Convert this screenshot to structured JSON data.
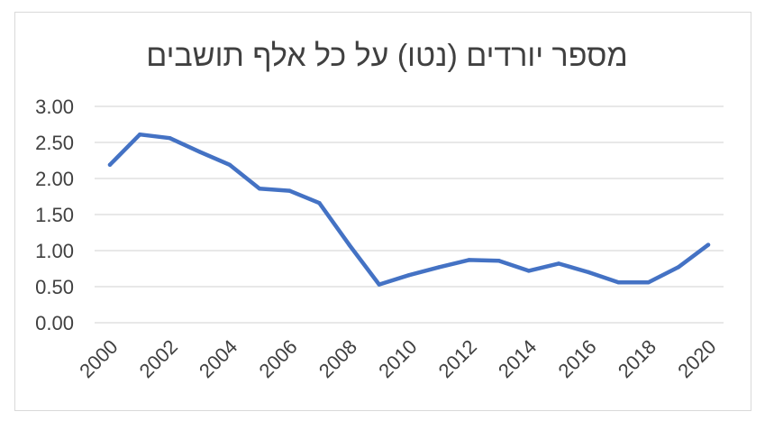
{
  "chart_data": {
    "type": "line",
    "title": "מספר יורדים (נטו) על כל אלף תושבים",
    "xlabel": "",
    "ylabel": "",
    "x": [
      2000,
      2001,
      2002,
      2003,
      2004,
      2005,
      2006,
      2007,
      2008,
      2009,
      2010,
      2011,
      2012,
      2013,
      2014,
      2015,
      2016,
      2017,
      2018,
      2019,
      2020
    ],
    "series": [
      {
        "values": [
          2.19,
          2.61,
          2.56,
          2.37,
          2.19,
          1.86,
          1.83,
          1.66,
          1.08,
          0.53,
          0.66,
          0.77,
          0.87,
          0.86,
          0.72,
          0.82,
          0.7,
          0.56,
          0.56,
          0.77,
          1.08
        ],
        "color": "#4472c4"
      }
    ],
    "x_tick_labels": [
      "2000",
      "2002",
      "2004",
      "2006",
      "2008",
      "2010",
      "2012",
      "2014",
      "2016",
      "2018",
      "2020"
    ],
    "y_tick_labels": [
      "0.00",
      "0.50",
      "1.00",
      "1.50",
      "2.00",
      "2.50",
      "3.00"
    ],
    "ylim": [
      0,
      3
    ],
    "xlim": [
      2000,
      2020
    ],
    "grid": true,
    "legend": "none",
    "gridline_color": "#d9d9d9",
    "axis_color": "#d9d9d9"
  }
}
